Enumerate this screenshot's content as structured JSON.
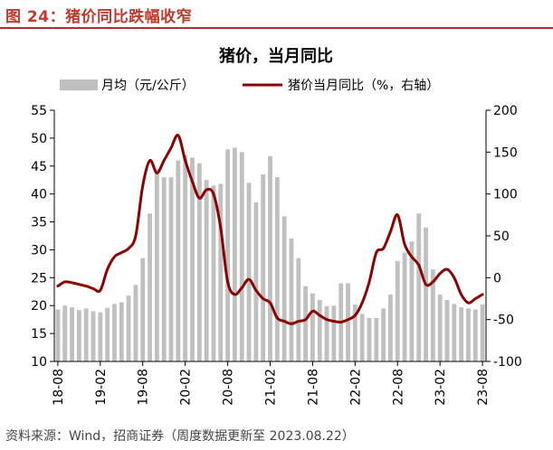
{
  "figure": {
    "title": "图 24：猪价同比跌幅收窄",
    "source": "资料来源：Wind，招商证券（周度数据更新至 2023.08.22）"
  },
  "colors": {
    "title_red": "#c0392b",
    "bar_gray": "#c0c0c0",
    "line_red": "#8b0000",
    "rule": "#b03030"
  },
  "chart_data": {
    "type": "bar+line",
    "title": "猪价，当月同比",
    "legend": {
      "position": "top",
      "entries": [
        "月均（元/公斤）",
        "猪价当月同比（%，右轴）"
      ]
    },
    "x_ticks": [
      "18-08",
      "19-02",
      "19-08",
      "20-02",
      "20-08",
      "21-02",
      "21-08",
      "22-02",
      "22-08",
      "23-02",
      "23-08"
    ],
    "y_left": {
      "min": 10,
      "max": 55,
      "step": 5,
      "ticks": [
        10,
        15,
        20,
        25,
        30,
        35,
        40,
        45,
        50,
        55
      ]
    },
    "y_right": {
      "min": -100,
      "max": 200,
      "step": 50,
      "ticks": [
        -100,
        -50,
        0,
        50,
        100,
        150,
        200
      ]
    },
    "grid": false,
    "months": [
      "18-08",
      "18-09",
      "18-10",
      "18-11",
      "18-12",
      "19-01",
      "19-02",
      "19-03",
      "19-04",
      "19-05",
      "19-06",
      "19-07",
      "19-08",
      "19-09",
      "19-10",
      "19-11",
      "19-12",
      "20-01",
      "20-02",
      "20-03",
      "20-04",
      "20-05",
      "20-06",
      "20-07",
      "20-08",
      "20-09",
      "20-10",
      "20-11",
      "20-12",
      "21-01",
      "21-02",
      "21-03",
      "21-04",
      "21-05",
      "21-06",
      "21-07",
      "21-08",
      "21-09",
      "21-10",
      "21-11",
      "21-12",
      "22-01",
      "22-02",
      "22-03",
      "22-04",
      "22-05",
      "22-06",
      "22-07",
      "22-08",
      "22-09",
      "22-10",
      "22-11",
      "22-12",
      "23-01",
      "23-02",
      "23-03",
      "23-04",
      "23-05",
      "23-06",
      "23-07",
      "23-08"
    ],
    "series": [
      {
        "name": "月均（元/公斤）",
        "type": "bar",
        "axis": "left",
        "values": [
          19.3,
          20.0,
          19.7,
          19.2,
          19.5,
          19.0,
          18.8,
          19.6,
          20.3,
          20.6,
          21.8,
          23.7,
          28.5,
          36.5,
          44.5,
          43.0,
          43.0,
          46.0,
          47.0,
          46.5,
          45.5,
          42.5,
          41.5,
          41.8,
          48.0,
          48.3,
          47.5,
          42.0,
          38.5,
          43.5,
          46.8,
          43.0,
          36.0,
          32.0,
          28.5,
          23.5,
          22.2,
          21.0,
          19.9,
          20.0,
          24.0,
          24.0,
          20.2,
          18.5,
          17.8,
          17.8,
          19.5,
          22.0,
          28.0,
          29.5,
          31.5,
          36.5,
          34.0,
          26.5,
          22.0,
          21.0,
          20.3,
          19.7,
          19.5,
          19.3,
          20.2
        ]
      },
      {
        "name": "猪价当月同比（%，右轴）",
        "type": "line",
        "axis": "right",
        "values": [
          -10,
          -5,
          -6,
          -8,
          -10,
          -13,
          -15,
          10,
          25,
          30,
          35,
          50,
          110,
          140,
          125,
          140,
          155,
          170,
          140,
          115,
          95,
          105,
          100,
          60,
          -5,
          -20,
          -12,
          -2,
          -15,
          -25,
          -30,
          -48,
          -52,
          -55,
          -52,
          -50,
          -40,
          -45,
          -50,
          -52,
          -53,
          -50,
          -45,
          -30,
          -5,
          30,
          35,
          55,
          75,
          40,
          25,
          15,
          -8,
          -5,
          5,
          10,
          0,
          -20,
          -30,
          -25,
          -20
        ]
      }
    ]
  }
}
